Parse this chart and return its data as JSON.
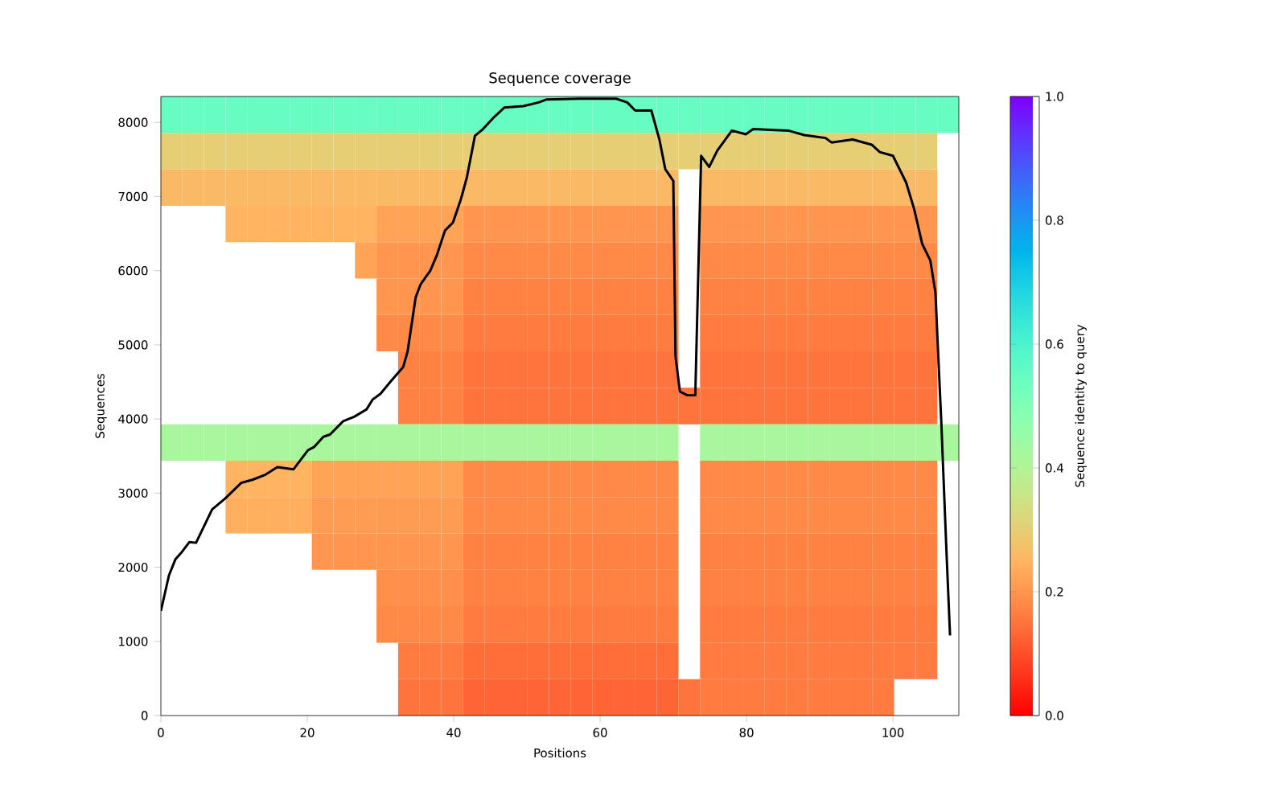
{
  "chart_data": [
    {
      "type": "heatmap",
      "clabel": "Sequence identity to query",
      "tick_labels": false,
      "xlim": [
        0,
        109
      ],
      "ylim": [
        0,
        8350
      ],
      "cells": [
        [
          0.55,
          0.55,
          0.55,
          0.55,
          0.55,
          0.55,
          0.55,
          0.55,
          0.55,
          0.55,
          0.55,
          0.55,
          0.55,
          0.55,
          0.55,
          0.55,
          0.55,
          0.55,
          0.55,
          0.55,
          0.55,
          0.55,
          0.55,
          0.55,
          0.55,
          0.55,
          0.55,
          0.55,
          0.55,
          0.55,
          0.55,
          0.55,
          0.55,
          0.55,
          0.55,
          0.55,
          0.55
        ],
        [
          0.3,
          0.3,
          0.3,
          0.3,
          0.3,
          0.3,
          0.3,
          0.3,
          0.3,
          0.3,
          0.3,
          0.3,
          0.3,
          0.3,
          0.3,
          0.3,
          0.3,
          0.3,
          0.3,
          0.3,
          0.3,
          0.3,
          0.3,
          0.3,
          0.3,
          0.3,
          0.3,
          0.3,
          0.3,
          0.3,
          0.3,
          0.3,
          0.3,
          0.3,
          0.3,
          0.3,
          null
        ],
        [
          0.26,
          0.26,
          0.26,
          0.26,
          0.26,
          0.26,
          0.26,
          0.26,
          0.26,
          0.26,
          0.26,
          0.26,
          0.26,
          0.26,
          0.26,
          0.26,
          0.26,
          0.26,
          0.26,
          0.26,
          0.26,
          0.26,
          0.26,
          0.26,
          null,
          0.26,
          0.26,
          0.26,
          0.26,
          0.26,
          0.26,
          0.26,
          0.26,
          0.26,
          0.26,
          0.26,
          null
        ],
        [
          null,
          null,
          null,
          0.25,
          0.25,
          0.25,
          0.25,
          0.25,
          0.25,
          0.25,
          0.22,
          0.22,
          0.22,
          0.22,
          0.2,
          0.2,
          0.2,
          0.2,
          0.2,
          0.2,
          0.2,
          0.2,
          0.2,
          0.2,
          null,
          0.2,
          0.2,
          0.2,
          0.2,
          0.2,
          0.2,
          0.2,
          0.2,
          0.2,
          0.2,
          0.2,
          null
        ],
        [
          null,
          null,
          null,
          null,
          null,
          null,
          null,
          null,
          null,
          0.22,
          0.2,
          0.2,
          0.2,
          0.2,
          0.18,
          0.18,
          0.18,
          0.18,
          0.18,
          0.18,
          0.18,
          0.18,
          0.18,
          0.18,
          null,
          0.18,
          0.18,
          0.18,
          0.18,
          0.18,
          0.18,
          0.18,
          0.18,
          0.18,
          0.18,
          0.18,
          null
        ],
        [
          null,
          null,
          null,
          null,
          null,
          null,
          null,
          null,
          null,
          null,
          0.2,
          0.2,
          0.2,
          0.2,
          0.17,
          0.17,
          0.17,
          0.17,
          0.17,
          0.17,
          0.17,
          0.17,
          0.17,
          0.17,
          null,
          0.17,
          0.17,
          0.17,
          0.17,
          0.17,
          0.17,
          0.17,
          0.17,
          0.17,
          0.17,
          0.17,
          null
        ],
        [
          null,
          null,
          null,
          null,
          null,
          null,
          null,
          null,
          null,
          null,
          0.18,
          0.18,
          0.18,
          0.18,
          0.16,
          0.16,
          0.16,
          0.16,
          0.16,
          0.16,
          0.16,
          0.16,
          0.16,
          0.16,
          null,
          0.16,
          0.16,
          0.16,
          0.16,
          0.16,
          0.16,
          0.16,
          0.16,
          0.16,
          0.16,
          0.16,
          null
        ],
        [
          null,
          null,
          null,
          null,
          null,
          null,
          null,
          null,
          null,
          null,
          null,
          0.17,
          0.17,
          0.17,
          0.15,
          0.15,
          0.15,
          0.15,
          0.15,
          0.15,
          0.15,
          0.15,
          0.15,
          0.15,
          null,
          0.15,
          0.15,
          0.15,
          0.15,
          0.15,
          0.15,
          0.15,
          0.15,
          0.15,
          0.15,
          0.15,
          null
        ],
        [
          null,
          null,
          null,
          null,
          null,
          null,
          null,
          null,
          null,
          null,
          null,
          0.17,
          0.17,
          0.17,
          0.15,
          0.15,
          0.15,
          0.15,
          0.15,
          0.15,
          0.15,
          0.15,
          0.15,
          0.15,
          0.15,
          0.15,
          0.15,
          0.15,
          0.15,
          0.15,
          0.15,
          0.15,
          0.15,
          0.15,
          0.15,
          0.15,
          null
        ],
        [
          0.42,
          0.42,
          0.42,
          0.42,
          0.42,
          0.42,
          0.42,
          0.42,
          0.42,
          0.42,
          0.42,
          0.42,
          0.42,
          0.42,
          0.42,
          0.42,
          0.42,
          0.42,
          0.42,
          0.42,
          0.42,
          0.42,
          0.42,
          0.42,
          null,
          0.42,
          0.42,
          0.42,
          0.42,
          0.42,
          0.42,
          0.42,
          0.42,
          0.42,
          0.42,
          0.42,
          0.42
        ],
        [
          null,
          null,
          null,
          0.25,
          0.25,
          0.25,
          0.25,
          0.22,
          0.22,
          0.22,
          0.22,
          0.22,
          0.22,
          0.22,
          0.18,
          0.18,
          0.18,
          0.18,
          0.18,
          0.18,
          0.18,
          0.18,
          0.18,
          0.18,
          null,
          0.18,
          0.18,
          0.18,
          0.18,
          0.18,
          0.18,
          0.18,
          0.18,
          0.18,
          0.18,
          0.18,
          null
        ],
        [
          null,
          null,
          null,
          0.24,
          0.24,
          0.24,
          0.24,
          0.21,
          0.21,
          0.21,
          0.21,
          0.21,
          0.21,
          0.21,
          0.18,
          0.18,
          0.18,
          0.18,
          0.18,
          0.18,
          0.18,
          0.18,
          0.18,
          0.18,
          null,
          0.18,
          0.18,
          0.18,
          0.18,
          0.18,
          0.18,
          0.18,
          0.18,
          0.18,
          0.18,
          0.18,
          null
        ],
        [
          null,
          null,
          null,
          null,
          null,
          null,
          null,
          0.2,
          0.2,
          0.2,
          0.2,
          0.2,
          0.2,
          0.2,
          0.17,
          0.17,
          0.17,
          0.17,
          0.17,
          0.17,
          0.17,
          0.17,
          0.17,
          0.17,
          null,
          0.17,
          0.17,
          0.17,
          0.17,
          0.17,
          0.17,
          0.17,
          0.17,
          0.17,
          0.17,
          0.17,
          null
        ],
        [
          null,
          null,
          null,
          null,
          null,
          null,
          null,
          null,
          null,
          null,
          0.19,
          0.19,
          0.19,
          0.19,
          0.17,
          0.17,
          0.17,
          0.17,
          0.17,
          0.17,
          0.17,
          0.17,
          0.17,
          0.17,
          null,
          0.17,
          0.17,
          0.17,
          0.17,
          0.17,
          0.17,
          0.17,
          0.17,
          0.17,
          0.17,
          0.17,
          null
        ],
        [
          null,
          null,
          null,
          null,
          null,
          null,
          null,
          null,
          null,
          null,
          0.18,
          0.18,
          0.18,
          0.18,
          0.16,
          0.16,
          0.16,
          0.16,
          0.16,
          0.16,
          0.16,
          0.16,
          0.16,
          0.16,
          null,
          0.16,
          0.16,
          0.16,
          0.16,
          0.16,
          0.16,
          0.16,
          0.16,
          0.16,
          0.16,
          0.16,
          null
        ],
        [
          null,
          null,
          null,
          null,
          null,
          null,
          null,
          null,
          null,
          null,
          null,
          0.16,
          0.16,
          0.16,
          0.14,
          0.14,
          0.14,
          0.14,
          0.14,
          0.14,
          0.14,
          0.14,
          0.14,
          0.14,
          null,
          0.16,
          0.16,
          0.16,
          0.16,
          0.16,
          0.16,
          0.16,
          0.16,
          0.16,
          0.16,
          0.16,
          null
        ],
        [
          null,
          null,
          null,
          null,
          null,
          null,
          null,
          null,
          null,
          null,
          null,
          0.15,
          0.15,
          0.15,
          0.13,
          0.13,
          0.13,
          0.13,
          0.13,
          0.13,
          0.13,
          0.13,
          0.13,
          0.13,
          0.15,
          0.16,
          0.16,
          0.16,
          0.16,
          0.16,
          0.16,
          0.16,
          0.16,
          0.16,
          null,
          null,
          null
        ]
      ],
      "clim": [
        0,
        1
      ],
      "cticks": [
        {
          "value": 0,
          "label": "0.0"
        },
        {
          "value": 0.2,
          "label": "0.2"
        },
        {
          "value": 0.4,
          "label": "0.4"
        },
        {
          "value": 0.6,
          "label": "0.6"
        },
        {
          "value": 0.8,
          "label": "0.8"
        },
        {
          "value": 1,
          "label": "1.0"
        }
      ]
    },
    {
      "type": "line",
      "title": "Sequence coverage",
      "xlabel": "Positions",
      "ylabel": "Sequences",
      "xlim": [
        0,
        109
      ],
      "ylim": [
        0,
        8350
      ],
      "xticks": [
        0,
        20,
        40,
        60,
        80,
        100
      ],
      "yticks": [
        0,
        1000,
        2000,
        3000,
        4000,
        5000,
        6000,
        7000,
        8000
      ],
      "series": [
        {
          "color": "#000000",
          "x": [
            0,
            1.1,
            2,
            2.9,
            3.9,
            4.8,
            7,
            8.8,
            11,
            12.5,
            14.3,
            15.9,
            18.1,
            20.1,
            20.9,
            22.2,
            23.1,
            24.9,
            26.4,
            28.1,
            28.9,
            30,
            31.5,
            33.1,
            33.7,
            34.8,
            35.5,
            36.8,
            37.7,
            38.8,
            39.9,
            41,
            41.8,
            42.9,
            44,
            45.4,
            46.9,
            49.5,
            51.6,
            52.7,
            57.1,
            62.2,
            63.7,
            64.8,
            67,
            68.1,
            68.9,
            70,
            70.3,
            70.9,
            71.9,
            73,
            73.8,
            74.9,
            76,
            78,
            79.9,
            80.9,
            85.7,
            87.9,
            90.8,
            91.6,
            94.5,
            97.1,
            98.2,
            100,
            101.8,
            102.9,
            104,
            105.1,
            105.8,
            106.6,
            107.3,
            107.8
          ],
          "values": [
            1410,
            1890,
            2110,
            2210,
            2340,
            2330,
            2780,
            2930,
            3140,
            3180,
            3250,
            3350,
            3320,
            3580,
            3620,
            3760,
            3790,
            3970,
            4030,
            4130,
            4260,
            4340,
            4520,
            4700,
            4910,
            5640,
            5820,
            6000,
            6210,
            6540,
            6650,
            6970,
            7260,
            7820,
            7910,
            8060,
            8200,
            8220,
            8270,
            8310,
            8320,
            8320,
            8270,
            8160,
            8160,
            7770,
            7370,
            7210,
            4840,
            4370,
            4320,
            4320,
            7550,
            7400,
            7620,
            7890,
            7840,
            7910,
            7890,
            7830,
            7790,
            7730,
            7770,
            7700,
            7600,
            7550,
            7190,
            6830,
            6360,
            6140,
            5710,
            3970,
            2240,
            1080
          ]
        }
      ]
    }
  ]
}
